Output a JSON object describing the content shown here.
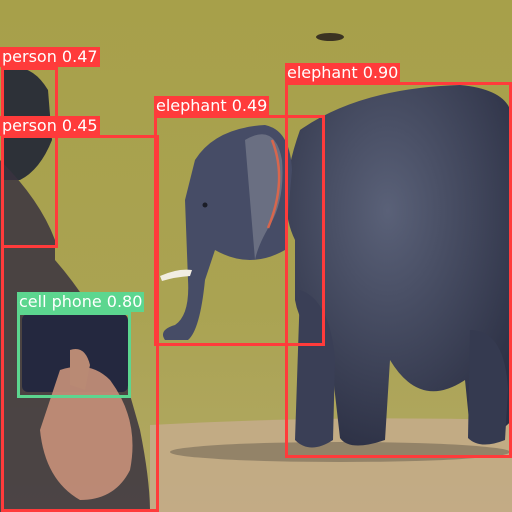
{
  "colors": {
    "person": "#ff3b3b",
    "elephant": "#ff3b3b",
    "cell phone": "#5cd68f"
  },
  "detections": [
    {
      "label": "person 0.47",
      "class": "person",
      "confidence": 0.47
    },
    {
      "label": "person 0.45",
      "class": "person",
      "confidence": 0.45
    },
    {
      "label": "elephant 0.49",
      "class": "elephant",
      "confidence": 0.49
    },
    {
      "label": "elephant 0.90",
      "class": "elephant",
      "confidence": 0.9
    },
    {
      "label": "cell phone 0.80",
      "class": "cell phone",
      "confidence": 0.8
    }
  ]
}
